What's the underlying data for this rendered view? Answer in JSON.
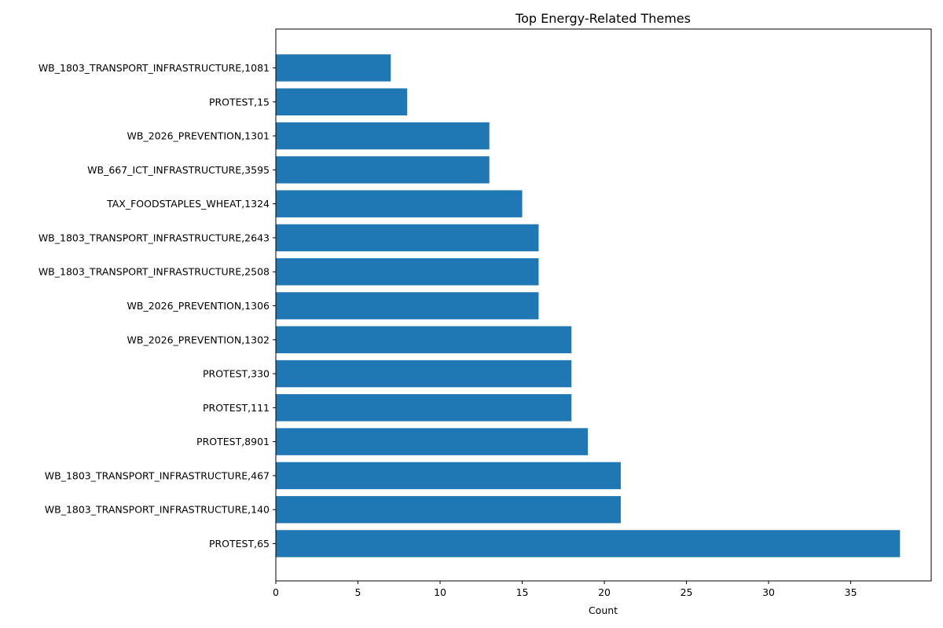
{
  "chart_data": {
    "type": "bar",
    "orientation": "horizontal",
    "title": "Top Energy-Related Themes",
    "xlabel": "Count",
    "ylabel": "",
    "xlim": [
      0,
      39.9
    ],
    "xticks": [
      0,
      5,
      10,
      15,
      20,
      25,
      30,
      35
    ],
    "bar_color": "#1f77b4",
    "grid": false,
    "categories": [
      "PROTEST,65",
      "WB_1803_TRANSPORT_INFRASTRUCTURE,140",
      "WB_1803_TRANSPORT_INFRASTRUCTURE,467",
      "PROTEST,8901",
      "PROTEST,111",
      "PROTEST,330",
      "WB_2026_PREVENTION,1302",
      "WB_2026_PREVENTION,1306",
      "WB_1803_TRANSPORT_INFRASTRUCTURE,2508",
      "WB_1803_TRANSPORT_INFRASTRUCTURE,2643",
      "TAX_FOODSTAPLES_WHEAT,1324",
      "WB_667_ICT_INFRASTRUCTURE,3595",
      "WB_2026_PREVENTION,1301",
      "PROTEST,15",
      "WB_1803_TRANSPORT_INFRASTRUCTURE,1081"
    ],
    "values": [
      38,
      21,
      21,
      19,
      18,
      18,
      18,
      16,
      16,
      16,
      15,
      13,
      13,
      8,
      7
    ]
  }
}
